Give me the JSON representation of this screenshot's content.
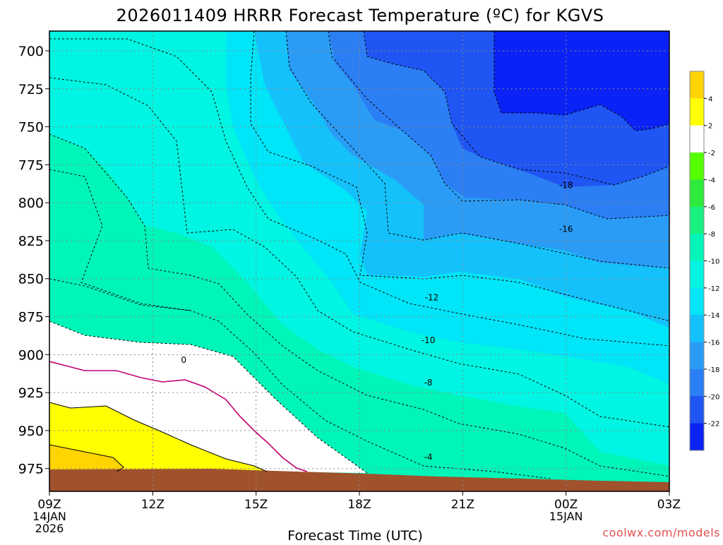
{
  "chart_data": {
    "type": "filled-contour",
    "title": "2026011409 HRRR Forecast Temperature (ºC) for KGVS",
    "xlabel": "Forecast Time (UTC)",
    "ylabel": "",
    "x_ticks": [
      {
        "label": "09Z",
        "sub1": "14JAN",
        "sub2": "2026",
        "hour": 0
      },
      {
        "label": "12Z",
        "sub1": "",
        "sub2": "",
        "hour": 3
      },
      {
        "label": "15Z",
        "sub1": "",
        "sub2": "",
        "hour": 6
      },
      {
        "label": "18Z",
        "sub1": "",
        "sub2": "",
        "hour": 9
      },
      {
        "label": "21Z",
        "sub1": "",
        "sub2": "",
        "hour": 12
      },
      {
        "label": "00Z",
        "sub1": "15JAN",
        "sub2": "",
        "hour": 15
      },
      {
        "label": "03Z",
        "sub1": "",
        "sub2": "",
        "hour": 18
      }
    ],
    "x_range_hours": [
      0,
      18
    ],
    "y_ticks": [
      700,
      725,
      750,
      775,
      800,
      825,
      850,
      875,
      900,
      925,
      950,
      975
    ],
    "y_range_hpa": [
      687,
      990
    ],
    "colorbar": {
      "levels": [
        -24,
        -22,
        -20,
        -18,
        -16,
        -14,
        -12,
        -10,
        -8,
        -6,
        -4,
        -2,
        2,
        4,
        6
      ],
      "tick_labels": [
        "-22",
        "-20",
        "-18",
        "-16",
        "-14",
        "-12",
        "-10",
        "-8",
        "-6",
        "-4",
        "-2",
        "2",
        "4"
      ],
      "colors": [
        "#0a22f5",
        "#1f55f2",
        "#2b7ef3",
        "#2a9cf6",
        "#14c1fb",
        "#00e5f8",
        "#00f5e2",
        "#00f5b8",
        "#19f27f",
        "#2eea3c",
        "#55ff00",
        "#ffffff",
        "#ffff00",
        "#ffd400"
      ]
    },
    "contour_labels": [
      {
        "text": "-18",
        "hour": 15.0,
        "hpa": 788
      },
      {
        "text": "-16",
        "hour": 15.0,
        "hpa": 817
      },
      {
        "text": "-12",
        "hour": 11.1,
        "hpa": 862
      },
      {
        "text": "-10",
        "hour": 11.0,
        "hpa": 890
      },
      {
        "text": "-8",
        "hour": 11.0,
        "hpa": 918
      },
      {
        "text": "-4",
        "hour": 11.0,
        "hpa": 967
      },
      {
        "text": "0",
        "hour": 3.9,
        "hpa": 903
      }
    ],
    "regions_by_temp": [
      {
        "temp_band": "-12 to -10",
        "boundaries": [
          [
            [
              0,
              687
            ],
            [
              11.5,
              687
            ],
            [
              12.5,
              737
            ],
            [
              14.7,
              757
            ],
            [
              18,
              762
            ],
            [
              18,
              990
            ],
            [
              0,
              990
            ]
          ]
        ]
      }
    ]
  },
  "footer": {
    "credit": "coolwx.com/models"
  }
}
